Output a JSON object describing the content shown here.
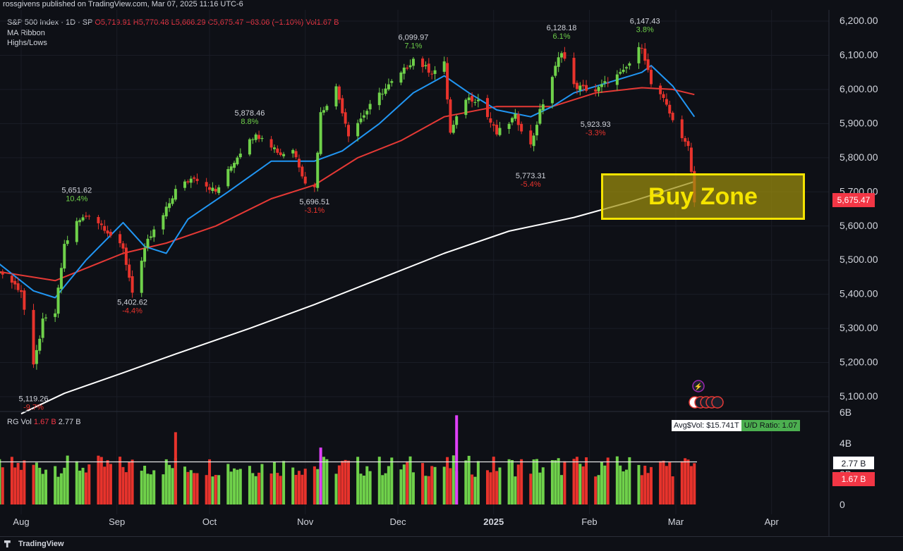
{
  "header": {
    "publisher_line": "rossgivens published on TradingView.com, Mar 07, 2025 11:16 UTC-6"
  },
  "legend": {
    "symbol": "S&P 500 Index · 1D · SP",
    "ohlc": "O5,719.91 H5,770.48 L5,666.29 C5,675.47 −63.06 (−1.10%) Vol1.67 B",
    "indicator_1": "MA Ribbon",
    "indicator_2": "Highs/Lows"
  },
  "volume_pane": {
    "label": "RG Vol",
    "last_value": "1.67 B",
    "avg_value": "2.77 B",
    "avg_dollar_vol": "Avg$Vol: $15.741T",
    "ud_ratio": "U/D Ratio: 1.07",
    "axis_ticks": [
      "6B",
      "4B",
      "2B",
      "0"
    ]
  },
  "price_tags": {
    "current_price": "5,675.47",
    "vol_avg": "2.77 B",
    "vol_last": "1.67 B"
  },
  "annotation": {
    "buy_zone_label": "Buy Zone"
  },
  "footer": {
    "brand": "TradingView"
  },
  "colors": {
    "background": "#0e1016",
    "up": "#6fd14a",
    "down": "#e8332c",
    "ma_fast": "#2196f3",
    "ma_mid": "#e53935",
    "ma_slow": "#ffffff",
    "buy_zone_border": "#f5e400",
    "buy_zone_fill": "#9e8f0c"
  },
  "chart_data": {
    "type": "candlestick",
    "title": "S&P 500 Index · 1D · SP",
    "y_ticks": [
      "6,200.00",
      "6,100.00",
      "6,000.00",
      "5,900.00",
      "5,800.00",
      "5,700.00",
      "5,600.00",
      "5,500.00",
      "5,400.00",
      "5,300.00",
      "5,200.00",
      "5,100.00"
    ],
    "ylim": [
      5050,
      6220
    ],
    "x_ticks": [
      "Aug",
      "Sep",
      "Oct",
      "Nov",
      "Dec",
      "2025",
      "Feb",
      "Mar",
      "Apr"
    ],
    "x_tick_dates": [
      "2024-08-01",
      "2024-09-01",
      "2024-10-01",
      "2024-11-01",
      "2024-12-01",
      "2025-01-01",
      "2025-02-01",
      "2025-03-01",
      "2025-04-01"
    ],
    "close_path": [
      [
        "2024-07-22",
        5470
      ],
      [
        "2024-07-26",
        5460
      ],
      [
        "2024-08-01",
        5410
      ],
      [
        "2024-08-05",
        5186
      ],
      [
        "2024-08-08",
        5320
      ],
      [
        "2024-08-12",
        5345
      ],
      [
        "2024-08-15",
        5545
      ],
      [
        "2024-08-19",
        5610
      ],
      [
        "2024-08-23",
        5635
      ],
      [
        "2024-08-28",
        5595
      ],
      [
        "2024-09-03",
        5530
      ],
      [
        "2024-09-06",
        5410
      ],
      [
        "2024-09-11",
        5555
      ],
      [
        "2024-09-16",
        5630
      ],
      [
        "2024-09-20",
        5705
      ],
      [
        "2024-09-26",
        5745
      ],
      [
        "2024-10-03",
        5700
      ],
      [
        "2024-10-09",
        5790
      ],
      [
        "2024-10-14",
        5860
      ],
      [
        "2024-10-18",
        5865
      ],
      [
        "2024-10-24",
        5810
      ],
      [
        "2024-10-28",
        5825
      ],
      [
        "2024-11-01",
        5730
      ],
      [
        "2024-11-04",
        5712
      ],
      [
        "2024-11-06",
        5930
      ],
      [
        "2024-11-11",
        6005
      ],
      [
        "2024-11-15",
        5870
      ],
      [
        "2024-11-19",
        5915
      ],
      [
        "2024-11-25",
        5985
      ],
      [
        "2024-12-02",
        6045
      ],
      [
        "2024-12-06",
        6090
      ],
      [
        "2024-12-12",
        6050
      ],
      [
        "2024-12-16",
        6075
      ],
      [
        "2024-12-18",
        5872
      ],
      [
        "2024-12-23",
        5975
      ],
      [
        "2024-12-27",
        5970
      ],
      [
        "2025-01-02",
        5870
      ],
      [
        "2025-01-08",
        5920
      ],
      [
        "2025-01-13",
        5835
      ],
      [
        "2025-01-16",
        5935
      ],
      [
        "2025-01-23",
        6115
      ],
      [
        "2025-01-27",
        6010
      ],
      [
        "2025-02-03",
        5995
      ],
      [
        "2025-02-07",
        6025
      ],
      [
        "2025-02-12",
        6050
      ],
      [
        "2025-02-18",
        6130
      ],
      [
        "2025-02-21",
        6015
      ],
      [
        "2025-02-26",
        5955
      ],
      [
        "2025-03-03",
        5850
      ],
      [
        "2025-03-05",
        5842
      ],
      [
        "2025-03-07",
        5675
      ]
    ],
    "swing_labels": [
      {
        "date": "2024-08-05",
        "price": 5119.26,
        "text": "5,119.26",
        "pct": "-9.7%",
        "pos": "below"
      },
      {
        "date": "2024-08-19",
        "price": 5651.62,
        "text": "5,651.62",
        "pct": "10.4%",
        "pos": "above"
      },
      {
        "date": "2024-09-06",
        "price": 5402.62,
        "text": "5,402.62",
        "pct": "-4.4%",
        "pos": "below"
      },
      {
        "date": "2024-10-14",
        "price": 5878.46,
        "text": "5,878.46",
        "pct": "8.8%",
        "pos": "above"
      },
      {
        "date": "2024-11-04",
        "price": 5696.51,
        "text": "5,696.51",
        "pct": "-3.1%",
        "pos": "below"
      },
      {
        "date": "2024-12-06",
        "price": 6099.97,
        "text": "6,099.97",
        "pct": "7.1%",
        "pos": "above"
      },
      {
        "date": "2025-01-13",
        "price": 5773.31,
        "text": "5,773.31",
        "pct": "-5.4%",
        "pos": "below"
      },
      {
        "date": "2025-01-23",
        "price": 6128.18,
        "text": "6,128.18",
        "pct": "6.1%",
        "pos": "above"
      },
      {
        "date": "2025-02-03",
        "price": 5923.93,
        "text": "5,923.93",
        "pct": "-3.3%",
        "pos": "below"
      },
      {
        "date": "2025-02-19",
        "price": 6147.43,
        "text": "6,147.43",
        "pct": "3.8%",
        "pos": "above"
      }
    ],
    "ma_fast": [
      [
        "2024-07-22",
        5510
      ],
      [
        "2024-08-05",
        5410
      ],
      [
        "2024-08-12",
        5390
      ],
      [
        "2024-08-22",
        5500
      ],
      [
        "2024-09-03",
        5610
      ],
      [
        "2024-09-10",
        5540
      ],
      [
        "2024-09-17",
        5520
      ],
      [
        "2024-09-24",
        5620
      ],
      [
        "2024-10-07",
        5700
      ],
      [
        "2024-10-21",
        5790
      ],
      [
        "2024-11-04",
        5790
      ],
      [
        "2024-11-13",
        5820
      ],
      [
        "2024-11-25",
        5900
      ],
      [
        "2024-12-06",
        5990
      ],
      [
        "2024-12-16",
        6040
      ],
      [
        "2024-12-24",
        5990
      ],
      [
        "2025-01-02",
        5940
      ],
      [
        "2025-01-13",
        5920
      ],
      [
        "2025-01-20",
        5950
      ],
      [
        "2025-01-27",
        5990
      ],
      [
        "2025-02-07",
        6020
      ],
      [
        "2025-02-18",
        6050
      ],
      [
        "2025-02-21",
        6070
      ],
      [
        "2025-02-28",
        6010
      ],
      [
        "2025-03-07",
        5920
      ]
    ],
    "ma_mid": [
      [
        "2024-07-22",
        5470
      ],
      [
        "2024-08-12",
        5440
      ],
      [
        "2024-09-03",
        5520
      ],
      [
        "2024-09-17",
        5550
      ],
      [
        "2024-10-03",
        5600
      ],
      [
        "2024-10-21",
        5680
      ],
      [
        "2024-11-04",
        5720
      ],
      [
        "2024-11-18",
        5800
      ],
      [
        "2024-12-02",
        5850
      ],
      [
        "2024-12-16",
        5920
      ],
      [
        "2025-01-02",
        5950
      ],
      [
        "2025-01-20",
        5950
      ],
      [
        "2025-02-03",
        5990
      ],
      [
        "2025-02-18",
        6005
      ],
      [
        "2025-02-28",
        6000
      ],
      [
        "2025-03-07",
        5985
      ]
    ],
    "ma_slow": [
      [
        "2024-08-01",
        5050
      ],
      [
        "2024-08-15",
        5110
      ],
      [
        "2024-09-03",
        5170
      ],
      [
        "2024-09-20",
        5225
      ],
      [
        "2024-10-14",
        5300
      ],
      [
        "2024-11-04",
        5370
      ],
      [
        "2024-11-25",
        5445
      ],
      [
        "2024-12-16",
        5520
      ],
      [
        "2025-01-06",
        5585
      ],
      [
        "2025-01-27",
        5625
      ],
      [
        "2025-02-14",
        5670
      ],
      [
        "2025-03-07",
        5730
      ]
    ],
    "volume_series": [
      "up",
      "down",
      "avg"
    ],
    "volume_ylim": [
      0,
      6
    ],
    "volume_avg_level": 2.77,
    "volume_spikes": [
      {
        "date": "2024-09-20",
        "value": 4.7,
        "dir": "down"
      },
      {
        "date": "2024-11-06",
        "value": 3.7,
        "dir": "spike"
      },
      {
        "date": "2024-12-20",
        "value": 5.8,
        "dir": "spike"
      }
    ]
  }
}
